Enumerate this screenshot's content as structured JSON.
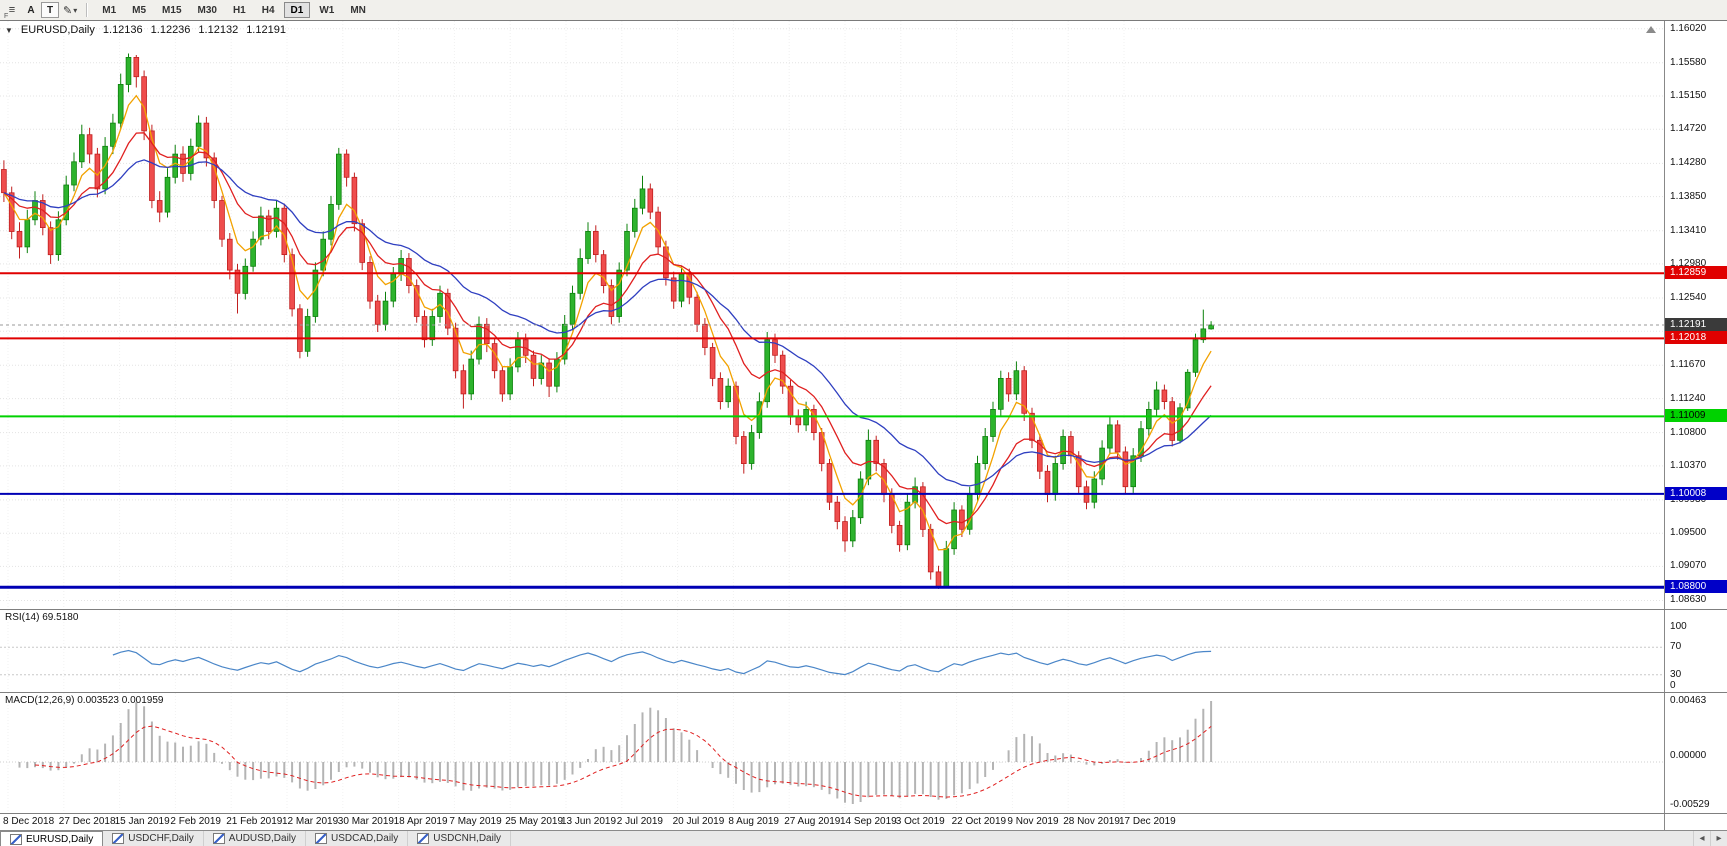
{
  "toolbar": {
    "menu_icon": "≡",
    "menu_sub": "F",
    "a_label": "A",
    "t_label": "T",
    "draw_icon": "✎",
    "dropdown_icon": "▾",
    "timeframes": [
      "M1",
      "M5",
      "M15",
      "M30",
      "H1",
      "H4",
      "D1",
      "W1",
      "MN"
    ],
    "active_timeframe": "D1"
  },
  "legend": {
    "collapse_icon": "▼",
    "symbol": "EURUSD,Daily",
    "open": "1.12136",
    "high": "1.12236",
    "low": "1.12132",
    "close": "1.12191"
  },
  "colors": {
    "up_fill": "#2db32d",
    "up_border": "#0c800c",
    "down_fill": "#ef4d4d",
    "down_border": "#c01f1f",
    "grid": "#e3e3e3"
  },
  "price_axis": {
    "scale_max": 1.1612,
    "scale_min": 1.0852,
    "labels": [
      "1.16020",
      "1.15580",
      "1.15150",
      "1.14720",
      "1.14280",
      "1.13850",
      "1.13410",
      "1.12980",
      "1.12540",
      "1.12110",
      "1.11670",
      "1.11240",
      "1.10800",
      "1.10370",
      "1.09930",
      "1.09500",
      "1.09070",
      "1.08630"
    ],
    "badges": [
      {
        "text": "1.12859",
        "price": 1.12859,
        "bg": "#e00000",
        "fg": "#ffffff",
        "line_color": "#e00000",
        "line_width": 2,
        "line_style": "solid"
      },
      {
        "text": "1.12191",
        "price": 1.12191,
        "bg": "#3a3a3a",
        "fg": "#ffffff",
        "line_color": "#9a9a9a",
        "line_width": 1,
        "line_style": "dash"
      },
      {
        "text": "1.12018",
        "price": 1.12018,
        "bg": "#e00000",
        "fg": "#ffffff",
        "line_color": "#e00000",
        "line_width": 2,
        "line_style": "solid"
      },
      {
        "text": "1.11009",
        "price": 1.11009,
        "bg": "#00d200",
        "fg": "#000000",
        "line_color": "#00d200",
        "line_width": 2,
        "line_style": "solid"
      },
      {
        "text": "1.10008",
        "price": 1.10008,
        "bg": "#0000c8",
        "fg": "#ffffff",
        "line_color": "#0000b4",
        "line_width": 2,
        "line_style": "solid"
      },
      {
        "text": "1.08800",
        "price": 1.088,
        "bg": "#0000c8",
        "fg": "#ffffff",
        "line_color": "#0000b4",
        "line_width": 3,
        "line_style": "solid"
      }
    ]
  },
  "chart_data": {
    "type": "candlestick",
    "symbol": "EURUSD",
    "timeframe": "Daily",
    "overlays": [
      {
        "name": "ma-fast-orange",
        "type": "ema",
        "period": 5,
        "color": "#f2a200"
      },
      {
        "name": "ma-mid-red",
        "type": "ema",
        "period": 12,
        "color": "#e02020"
      },
      {
        "name": "ma-slow-blue",
        "type": "ema",
        "period": 26,
        "color": "#2f3fc0"
      }
    ],
    "candles": [
      [
        1.142,
        1.1432,
        1.1378,
        1.139
      ],
      [
        1.139,
        1.1398,
        1.133,
        1.134
      ],
      [
        1.134,
        1.1352,
        1.1305,
        1.132
      ],
      [
        1.132,
        1.1368,
        1.1312,
        1.1355
      ],
      [
        1.1355,
        1.1392,
        1.1348,
        1.138
      ],
      [
        1.138,
        1.1388,
        1.1335,
        1.1345
      ],
      [
        1.1345,
        1.1353,
        1.1298,
        1.131
      ],
      [
        1.131,
        1.1366,
        1.1302,
        1.1355
      ],
      [
        1.1355,
        1.1412,
        1.1348,
        1.14
      ],
      [
        1.14,
        1.1442,
        1.1392,
        1.143
      ],
      [
        1.143,
        1.1478,
        1.1422,
        1.1465
      ],
      [
        1.1465,
        1.1474,
        1.1428,
        1.144
      ],
      [
        1.144,
        1.1448,
        1.1384,
        1.1395
      ],
      [
        1.1395,
        1.1462,
        1.1388,
        1.145
      ],
      [
        1.145,
        1.1492,
        1.144,
        1.148
      ],
      [
        1.148,
        1.1544,
        1.1472,
        1.153
      ],
      [
        1.153,
        1.157,
        1.152,
        1.1565
      ],
      [
        1.1565,
        1.1568,
        1.1526,
        1.154
      ],
      [
        1.154,
        1.1548,
        1.1458,
        1.147
      ],
      [
        1.147,
        1.1478,
        1.137,
        1.138
      ],
      [
        1.138,
        1.1392,
        1.1352,
        1.1365
      ],
      [
        1.1365,
        1.1422,
        1.1358,
        1.141
      ],
      [
        1.141,
        1.1452,
        1.1402,
        1.144
      ],
      [
        1.144,
        1.145,
        1.1404,
        1.1415
      ],
      [
        1.1415,
        1.146,
        1.1406,
        1.145
      ],
      [
        1.145,
        1.149,
        1.1442,
        1.148
      ],
      [
        1.148,
        1.1488,
        1.1424,
        1.1435
      ],
      [
        1.1435,
        1.1442,
        1.137,
        1.138
      ],
      [
        1.138,
        1.1386,
        1.132,
        1.133
      ],
      [
        1.133,
        1.1338,
        1.1278,
        1.129
      ],
      [
        1.129,
        1.1298,
        1.1234,
        1.126
      ],
      [
        1.126,
        1.1305,
        1.1252,
        1.1295
      ],
      [
        1.1295,
        1.134,
        1.1288,
        1.133
      ],
      [
        1.133,
        1.1372,
        1.1322,
        1.136
      ],
      [
        1.136,
        1.1368,
        1.133,
        1.134
      ],
      [
        1.134,
        1.138,
        1.1332,
        1.137
      ],
      [
        1.137,
        1.1376,
        1.13,
        1.131
      ],
      [
        1.131,
        1.1318,
        1.123,
        1.124
      ],
      [
        1.124,
        1.1246,
        1.1176,
        1.1185
      ],
      [
        1.1185,
        1.124,
        1.1178,
        1.123
      ],
      [
        1.123,
        1.13,
        1.1222,
        1.129
      ],
      [
        1.129,
        1.134,
        1.1282,
        1.133
      ],
      [
        1.133,
        1.1386,
        1.1322,
        1.1375
      ],
      [
        1.1375,
        1.1448,
        1.1368,
        1.144
      ],
      [
        1.144,
        1.1446,
        1.1398,
        1.141
      ],
      [
        1.141,
        1.1416,
        1.134,
        1.135
      ],
      [
        1.135,
        1.1356,
        1.129,
        1.13
      ],
      [
        1.13,
        1.1308,
        1.124,
        1.125
      ],
      [
        1.125,
        1.1258,
        1.121,
        1.122
      ],
      [
        1.122,
        1.1262,
        1.1212,
        1.125
      ],
      [
        1.125,
        1.1294,
        1.1242,
        1.1285
      ],
      [
        1.1285,
        1.1316,
        1.1276,
        1.1305
      ],
      [
        1.1305,
        1.1312,
        1.126,
        1.127
      ],
      [
        1.127,
        1.1278,
        1.1222,
        1.123
      ],
      [
        1.123,
        1.1238,
        1.119,
        1.12
      ],
      [
        1.12,
        1.124,
        1.1192,
        1.123
      ],
      [
        1.123,
        1.127,
        1.1222,
        1.126
      ],
      [
        1.126,
        1.1266,
        1.1206,
        1.1215
      ],
      [
        1.1215,
        1.1222,
        1.115,
        1.116
      ],
      [
        1.116,
        1.1168,
        1.1111,
        1.113
      ],
      [
        1.113,
        1.1186,
        1.1122,
        1.1175
      ],
      [
        1.1175,
        1.123,
        1.1168,
        1.122
      ],
      [
        1.122,
        1.1228,
        1.1184,
        1.1195
      ],
      [
        1.1195,
        1.1202,
        1.115,
        1.116
      ],
      [
        1.116,
        1.1166,
        1.112,
        1.113
      ],
      [
        1.113,
        1.1176,
        1.1122,
        1.1165
      ],
      [
        1.1165,
        1.121,
        1.1158,
        1.12
      ],
      [
        1.12,
        1.1208,
        1.117,
        1.118
      ],
      [
        1.118,
        1.1186,
        1.114,
        1.115
      ],
      [
        1.115,
        1.118,
        1.1142,
        1.117
      ],
      [
        1.117,
        1.1176,
        1.1126,
        1.114
      ],
      [
        1.114,
        1.1184,
        1.1132,
        1.1175
      ],
      [
        1.1175,
        1.1232,
        1.1168,
        1.122
      ],
      [
        1.122,
        1.127,
        1.1212,
        1.126
      ],
      [
        1.126,
        1.1318,
        1.1252,
        1.1305
      ],
      [
        1.1305,
        1.1352,
        1.1298,
        1.134
      ],
      [
        1.134,
        1.1348,
        1.13,
        1.131
      ],
      [
        1.131,
        1.1316,
        1.126,
        1.127
      ],
      [
        1.127,
        1.1278,
        1.122,
        1.123
      ],
      [
        1.123,
        1.13,
        1.1222,
        1.129
      ],
      [
        1.129,
        1.135,
        1.1282,
        1.134
      ],
      [
        1.134,
        1.1382,
        1.1332,
        1.137
      ],
      [
        1.137,
        1.1412,
        1.1362,
        1.1395
      ],
      [
        1.1395,
        1.1402,
        1.1356,
        1.1365
      ],
      [
        1.1365,
        1.1372,
        1.131,
        1.132
      ],
      [
        1.132,
        1.1328,
        1.127,
        1.128
      ],
      [
        1.128,
        1.1288,
        1.124,
        1.125
      ],
      [
        1.125,
        1.1295,
        1.1242,
        1.1285
      ],
      [
        1.1285,
        1.1292,
        1.1246,
        1.1255
      ],
      [
        1.1255,
        1.1262,
        1.121,
        1.122
      ],
      [
        1.122,
        1.1228,
        1.118,
        1.119
      ],
      [
        1.119,
        1.1196,
        1.114,
        1.115
      ],
      [
        1.115,
        1.1158,
        1.111,
        1.112
      ],
      [
        1.112,
        1.115,
        1.1112,
        1.114
      ],
      [
        1.114,
        1.1146,
        1.1065,
        1.1075
      ],
      [
        1.1075,
        1.1082,
        1.1027,
        1.104
      ],
      [
        1.104,
        1.109,
        1.1032,
        1.108
      ],
      [
        1.108,
        1.1132,
        1.1072,
        1.112
      ],
      [
        1.112,
        1.121,
        1.1112,
        1.12
      ],
      [
        1.12,
        1.1208,
        1.117,
        1.118
      ],
      [
        1.118,
        1.1186,
        1.113,
        1.114
      ],
      [
        1.114,
        1.1148,
        1.109,
        1.11
      ],
      [
        1.11,
        1.111,
        1.108,
        1.109
      ],
      [
        1.109,
        1.112,
        1.1082,
        1.111
      ],
      [
        1.111,
        1.1116,
        1.107,
        1.108
      ],
      [
        1.108,
        1.1086,
        1.103,
        1.104
      ],
      [
        1.104,
        1.1046,
        1.098,
        1.099
      ],
      [
        1.099,
        1.0998,
        1.0955,
        1.0965
      ],
      [
        1.0965,
        1.0972,
        1.0926,
        1.094
      ],
      [
        1.094,
        1.098,
        1.0932,
        1.097
      ],
      [
        1.097,
        1.103,
        1.0962,
        1.102
      ],
      [
        1.102,
        1.1084,
        1.1012,
        1.107
      ],
      [
        1.107,
        1.1076,
        1.103,
        1.104
      ],
      [
        1.104,
        1.1046,
        1.099,
        1.1
      ],
      [
        1.1,
        1.1008,
        1.095,
        1.096
      ],
      [
        1.096,
        1.0966,
        1.0926,
        1.0935
      ],
      [
        1.0935,
        1.1,
        1.0928,
        1.099
      ],
      [
        1.099,
        1.1022,
        1.0982,
        1.101
      ],
      [
        1.101,
        1.1016,
        1.0945,
        1.0955
      ],
      [
        1.0955,
        1.0962,
        1.089,
        1.09
      ],
      [
        1.09,
        1.0908,
        1.0878,
        1.088
      ],
      [
        1.088,
        1.094,
        1.0879,
        1.093
      ],
      [
        1.093,
        1.099,
        1.0922,
        1.098
      ],
      [
        1.098,
        1.0986,
        1.0945,
        1.0955
      ],
      [
        1.0955,
        1.101,
        1.0948,
        1.1
      ],
      [
        1.1,
        1.105,
        1.0992,
        1.104
      ],
      [
        1.104,
        1.1086,
        1.1032,
        1.1075
      ],
      [
        1.1075,
        1.112,
        1.1068,
        1.111
      ],
      [
        1.111,
        1.116,
        1.1102,
        1.115
      ],
      [
        1.115,
        1.1158,
        1.112,
        1.113
      ],
      [
        1.113,
        1.1172,
        1.1122,
        1.116
      ],
      [
        1.116,
        1.1166,
        1.1095,
        1.1105
      ],
      [
        1.1105,
        1.1112,
        1.106,
        1.107
      ],
      [
        1.107,
        1.1078,
        1.102,
        1.103
      ],
      [
        1.103,
        1.1038,
        1.099,
        1.1
      ],
      [
        1.1,
        1.105,
        1.0992,
        1.104
      ],
      [
        1.104,
        1.1084,
        1.1032,
        1.1075
      ],
      [
        1.1075,
        1.1082,
        1.104,
        1.105
      ],
      [
        1.105,
        1.1056,
        1.1,
        1.101
      ],
      [
        1.101,
        1.1018,
        1.0981,
        1.099
      ],
      [
        1.099,
        1.103,
        1.0982,
        1.102
      ],
      [
        1.102,
        1.107,
        1.1012,
        1.106
      ],
      [
        1.106,
        1.11,
        1.1052,
        1.109
      ],
      [
        1.109,
        1.1096,
        1.1045,
        1.1055
      ],
      [
        1.1055,
        1.1062,
        1.1001,
        1.101
      ],
      [
        1.101,
        1.106,
        1.1002,
        1.105
      ],
      [
        1.105,
        1.1095,
        1.1042,
        1.1085
      ],
      [
        1.1085,
        1.112,
        1.1076,
        1.111
      ],
      [
        1.111,
        1.1146,
        1.1102,
        1.1135
      ],
      [
        1.1135,
        1.1142,
        1.111,
        1.112
      ],
      [
        1.112,
        1.1126,
        1.1062,
        1.107
      ],
      [
        1.107,
        1.1118,
        1.1066,
        1.1112
      ],
      [
        1.1112,
        1.1162,
        1.1108,
        1.1158
      ],
      [
        1.1158,
        1.1208,
        1.1152,
        1.12
      ],
      [
        1.12,
        1.1239,
        1.1196,
        1.1214
      ],
      [
        1.1214,
        1.1224,
        1.1213,
        1.12191
      ]
    ]
  },
  "rsi": {
    "label": "RSI(14) 69.5180",
    "period": 14,
    "levels": [
      "100",
      "70",
      "30",
      "0"
    ],
    "color": "#4a86c8"
  },
  "macd": {
    "label": "MACD(12,26,9) 0.003523 0.001959",
    "fast": 12,
    "slow": 26,
    "signal": 9,
    "axis_labels": [
      "0.00463",
      "0.00000",
      "-0.00529"
    ],
    "histogram_color": "#b4b4b4",
    "signal_color": "#e02020"
  },
  "date_axis": {
    "labels": [
      "8 Dec 2018",
      "27 Dec 2018",
      "15 Jan 2019",
      "2 Feb 2019",
      "21 Feb 2019",
      "12 Mar 2019",
      "30 Mar 2019",
      "18 Apr 2019",
      "7 May 2019",
      "25 May 2019",
      "13 Jun 2019",
      "2 Jul 2019",
      "20 Jul 2019",
      "8 Aug 2019",
      "27 Aug 2019",
      "14 Sep 2019",
      "3 Oct 2019",
      "22 Oct 2019",
      "9 Nov 2019",
      "28 Nov 2019",
      "17 Dec 2019"
    ]
  },
  "tabbar": {
    "tabs": [
      {
        "label": "EURUSD,Daily",
        "active": true
      },
      {
        "label": "USDCHF,Daily",
        "active": false
      },
      {
        "label": "AUDUSD,Daily",
        "active": false
      },
      {
        "label": "USDCAD,Daily",
        "active": false
      },
      {
        "label": "USDCNH,Daily",
        "active": false
      }
    ],
    "scroll_left_icon": "◂",
    "scroll_right_icon": "▸"
  }
}
